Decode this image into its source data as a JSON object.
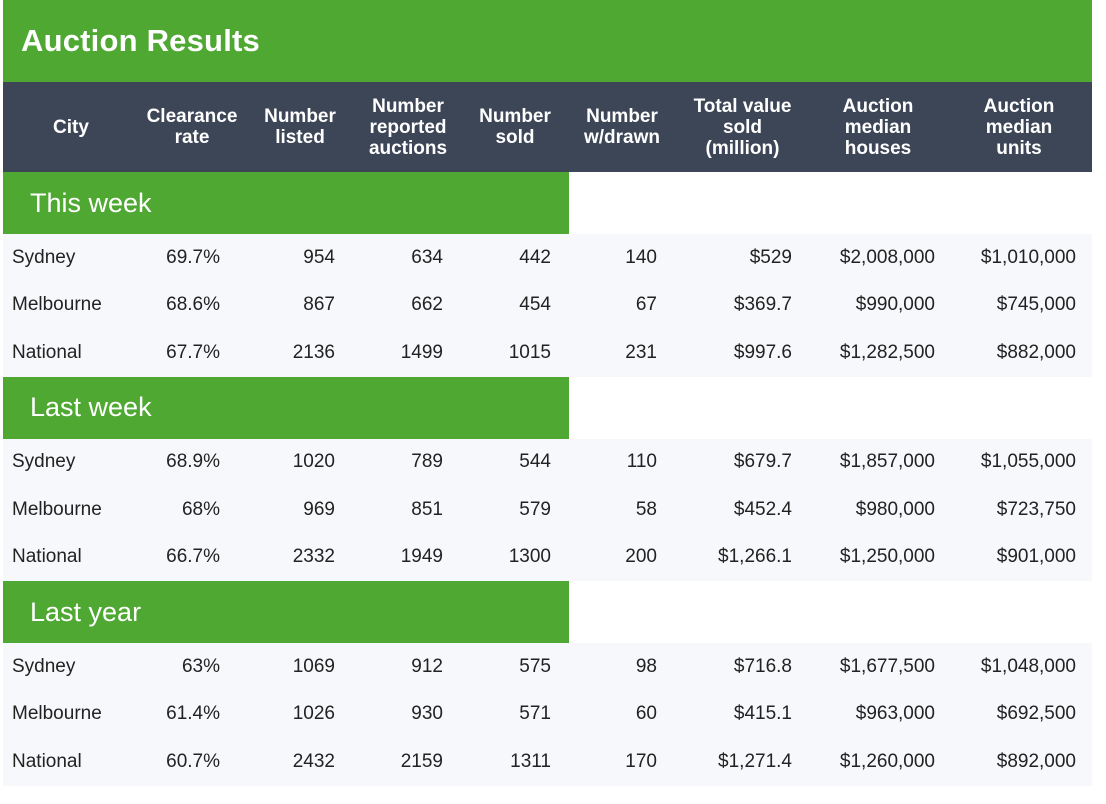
{
  "title": "Auction Results",
  "chart_data": {
    "type": "table",
    "title": "Auction Results",
    "columns": [
      "City",
      "Clearance\nrate",
      "Number\nlisted",
      "Number\nreported\nauctions",
      "Number\nsold",
      "Number\nw/drawn",
      "Total value\nsold\n(million)",
      "Auction\nmedian\nhouses",
      "Auction\nmedian\nunits"
    ],
    "sections": [
      {
        "label": "This week",
        "rows": [
          [
            "Sydney",
            "69.7%",
            "954",
            "634",
            "442",
            "140",
            "$529",
            "$2,008,000",
            "$1,010,000"
          ],
          [
            "Melbourne",
            "68.6%",
            "867",
            "662",
            "454",
            "67",
            "$369.7",
            "$990,000",
            "$745,000"
          ],
          [
            "National",
            "67.7%",
            "2136",
            "1499",
            "1015",
            "231",
            "$997.6",
            "$1,282,500",
            "$882,000"
          ]
        ]
      },
      {
        "label": "Last week",
        "rows": [
          [
            "Sydney",
            "68.9%",
            "1020",
            "789",
            "544",
            "110",
            "$679.7",
            "$1,857,000",
            "$1,055,000"
          ],
          [
            "Melbourne",
            "68%",
            "969",
            "851",
            "579",
            "58",
            "$452.4",
            "$980,000",
            "$723,750"
          ],
          [
            "National",
            "66.7%",
            "2332",
            "1949",
            "1300",
            "200",
            "$1,266.1",
            "$1,250,000",
            "$901,000"
          ]
        ]
      },
      {
        "label": "Last year",
        "rows": [
          [
            "Sydney",
            "63%",
            "1069",
            "912",
            "575",
            "98",
            "$716.8",
            "$1,677,500",
            "$1,048,000"
          ],
          [
            "Melbourne",
            "61.4%",
            "1026",
            "930",
            "571",
            "60",
            "$415.1",
            "$963,000",
            "$692,500"
          ],
          [
            "National",
            "60.7%",
            "2432",
            "2159",
            "1311",
            "170",
            "$1,271.4",
            "$1,260,000",
            "$892,000"
          ]
        ]
      }
    ]
  },
  "colors": {
    "brand_green": "#4ea832",
    "header_navy": "#3d4657",
    "row_background": "#f7f8fb",
    "text": "#222222"
  }
}
